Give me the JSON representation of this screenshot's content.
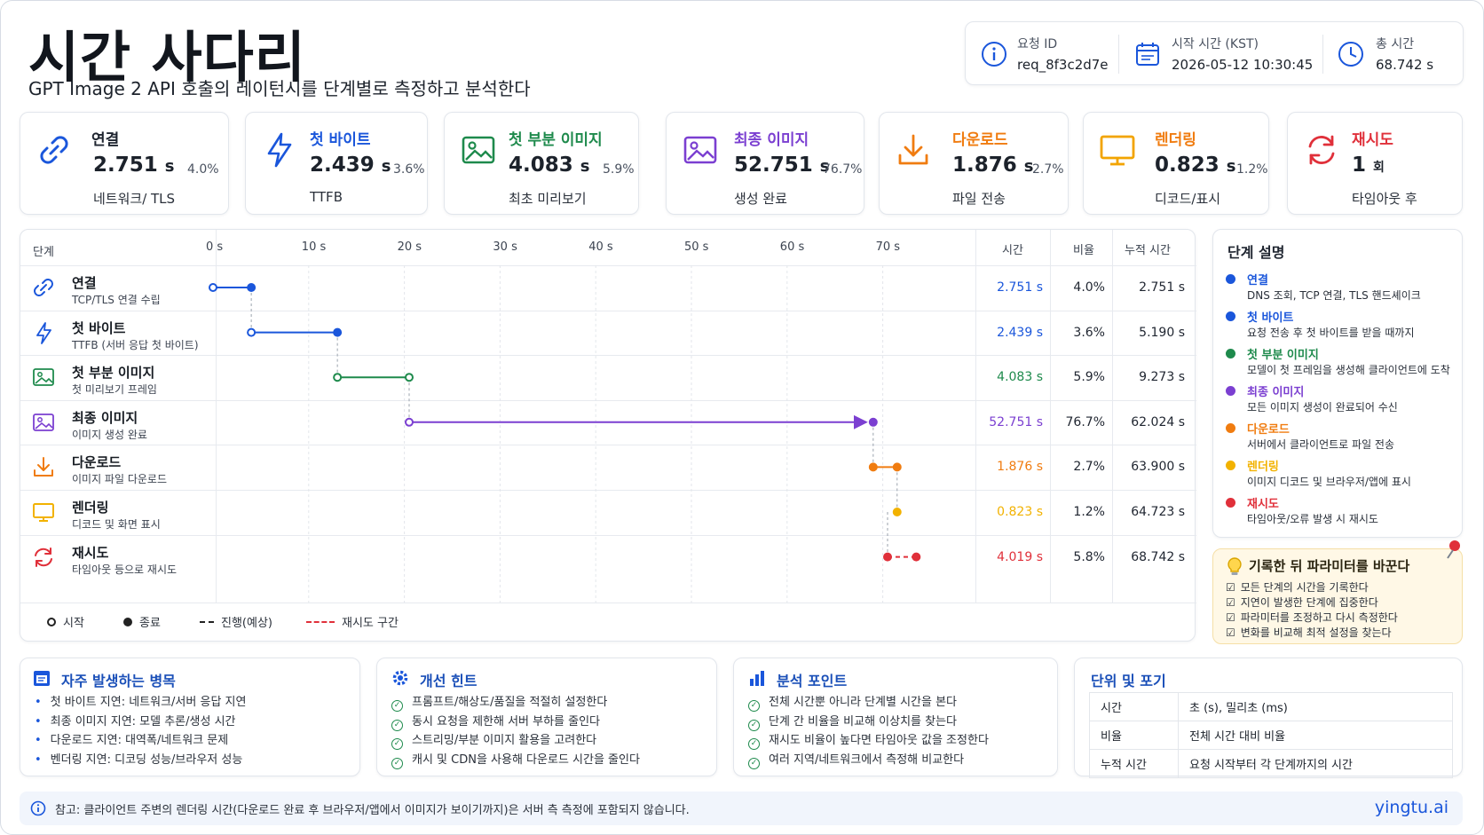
{
  "header": {
    "title": "시간 사다리",
    "subtitle": "GPT Image 2 API 호출의 레이턴시를 단계별로 측정하고 분석한다"
  },
  "info": {
    "request_id_label": "요청 ID",
    "request_id": "req_8f3c2d7e",
    "start_time_label": "시작 시간 (KST)",
    "start_time": "2026-05-12 10:30:45",
    "total_label": "총 시간",
    "total": "68.742 s"
  },
  "metrics": [
    {
      "title": "연결",
      "value": "2.751",
      "unit": "s",
      "pct": "4.0%",
      "sub": "네트워크/ TLS",
      "color": "#1f2530",
      "icon": "link-icon"
    },
    {
      "title": "첫 바이트",
      "value": "2.439",
      "unit": "s",
      "pct": "3.6%",
      "sub": "TTFB",
      "color": "#1a56db",
      "icon": "lightning-icon"
    },
    {
      "title": "첫 부분 이미지",
      "value": "4.083",
      "unit": "s",
      "pct": "5.9%",
      "sub": "최초 미리보기",
      "color": "#1e8a4c",
      "icon": "image-icon"
    },
    {
      "title": "최종 이미지",
      "value": "52.751",
      "unit": "s",
      "pct": "76.7%",
      "sub": "생성 완료",
      "color": "#7b3fd1",
      "icon": "image-icon"
    },
    {
      "title": "다운로드",
      "value": "1.876",
      "unit": "s",
      "pct": "2.7%",
      "sub": "파일 전송",
      "color": "#f07c10",
      "icon": "download-icon"
    },
    {
      "title": "렌더링",
      "value": "0.823",
      "unit": "s",
      "pct": "1.2%",
      "sub": "디코드/표시",
      "color": "#f07c10",
      "icon": "monitor-icon"
    },
    {
      "title": "재시도",
      "value": "1",
      "unit": "회",
      "pct": "",
      "sub": "타임아웃 후",
      "color": "#e0303a",
      "icon": "retry-icon"
    }
  ],
  "timeline": {
    "headers": {
      "stage": "단계",
      "time": "시간",
      "ratio": "비율",
      "cumulative": "누적 시간"
    },
    "ticks": [
      "0 s",
      "10 s",
      "20 s",
      "30 s",
      "40 s",
      "50 s",
      "60 s",
      "70 s"
    ],
    "rows": [
      {
        "name": "연결",
        "desc": "TCP/TLS 연결 수립",
        "time": "2.751 s",
        "ratio": "4.0%",
        "cum": "2.751 s",
        "color": "#1a56db",
        "icon": "link-icon"
      },
      {
        "name": "첫 바이트",
        "desc": "TTFB (서버 응답 첫 바이트)",
        "time": "2.439 s",
        "ratio": "3.6%",
        "cum": "5.190 s",
        "color": "#1a56db",
        "icon": "lightning-icon"
      },
      {
        "name": "첫 부분 이미지",
        "desc": "첫 미리보기 프레임",
        "time": "4.083 s",
        "ratio": "5.9%",
        "cum": "9.273 s",
        "color": "#1e8a4c",
        "icon": "image-icon"
      },
      {
        "name": "최종 이미지",
        "desc": "이미지 생성 완료",
        "time": "52.751 s",
        "ratio": "76.7%",
        "cum": "62.024 s",
        "color": "#7b3fd1",
        "icon": "image-icon"
      },
      {
        "name": "다운로드",
        "desc": "이미지 파일 다운로드",
        "time": "1.876 s",
        "ratio": "2.7%",
        "cum": "63.900 s",
        "color": "#f07c10",
        "icon": "download-icon"
      },
      {
        "name": "렌더링",
        "desc": "디코드 및 화면 표시",
        "time": "0.823 s",
        "ratio": "1.2%",
        "cum": "64.723 s",
        "color": "#f2b200",
        "icon": "monitor-icon"
      },
      {
        "name": "재시도",
        "desc": "타임아웃 등으로 재시도",
        "time": "4.019 s",
        "ratio": "5.8%",
        "cum": "68.742 s",
        "color": "#e0303a",
        "icon": "retry-icon"
      }
    ],
    "segments": [
      {
        "start": 0,
        "end": 4.0,
        "color": "#1a56db",
        "dashed": false,
        "start_dot": "open",
        "end_dot": "filled",
        "arrow": false
      },
      {
        "start": 4.0,
        "end": 13.0,
        "color": "#1a56db",
        "dashed": false,
        "start_dot": "open",
        "end_dot": "filled",
        "arrow": false
      },
      {
        "start": 13.0,
        "end": 20.5,
        "color": "#1e8a4c",
        "dashed": false,
        "start_dot": "open",
        "end_dot": "open",
        "arrow": false
      },
      {
        "start": 20.5,
        "end": 69.0,
        "color": "#7b3fd1",
        "dashed": false,
        "start_dot": "open",
        "end_dot": "filled",
        "arrow": true
      },
      {
        "start": 69.0,
        "end": 71.5,
        "color": "#f07c10",
        "dashed": false,
        "start_dot": "filled",
        "end_dot": "filled",
        "arrow": false
      },
      {
        "start": 71.5,
        "end": 71.5,
        "color": "#f2b200",
        "dashed": false,
        "start_dot": "filled",
        "end_dot": "filled",
        "arrow": false
      },
      {
        "start": 70.5,
        "end": 73.5,
        "color": "#e0303a",
        "dashed": true,
        "start_dot": "filled",
        "end_dot": "filled",
        "arrow": false
      }
    ],
    "legend": {
      "start": "시작",
      "end": "종료",
      "progress": "진행(예상)",
      "retry": "재시도 구간"
    }
  },
  "descriptions": {
    "title": "단계 설명",
    "items": [
      {
        "name": "연결",
        "text": "DNS 조회, TCP 연결, TLS 핸드셰이크",
        "color": "#1a56db"
      },
      {
        "name": "첫 바이트",
        "text": "요청 전송 후 첫 바이트를 받을 때까지",
        "color": "#1a56db"
      },
      {
        "name": "첫 부분 이미지",
        "text": "모델이 첫 프레임을 생성해 클라이언트에 도착",
        "color": "#1e8a4c"
      },
      {
        "name": "최종 이미지",
        "text": "모든 이미지 생성이 완료되어 수신",
        "color": "#7b3fd1"
      },
      {
        "name": "다운로드",
        "text": "서버에서 클라이언트로 파일 전송",
        "color": "#f07c10"
      },
      {
        "name": "렌더링",
        "text": "이미지 디코드 및 브라우저/앱에 표시",
        "color": "#f2b200"
      },
      {
        "name": "재시도",
        "text": "타임아웃/오류 발생 시 재시도",
        "color": "#e0303a"
      }
    ]
  },
  "note": {
    "title": "기록한 뒤 파라미터를 바꾼다",
    "items": [
      "모든 단계의 시간을 기록한다",
      "지연이 발생한 단계에 집중한다",
      "파라미터를 조정하고 다시 측정한다",
      "변화를 비교해 최적 설정을 찾는다"
    ]
  },
  "bottom": {
    "bottlenecks": {
      "title": "자주 발생하는 병목",
      "items": [
        "첫 바이트 지연: 네트워크/서버 응답 지연",
        "최종 이미지 지연: 모델 추론/생성 시간",
        "다운로드 지연: 대역폭/네트워크 문제",
        "벤더링 지연: 디코딩 성능/브라우저 성능"
      ]
    },
    "hints": {
      "title": "개선 힌트",
      "items": [
        "프롬프트/해상도/품질을 적절히 설정한다",
        "동시 요청을 제한해 서버 부하를 줄인다",
        "스트리밍/부분 이미지 활용을 고려한다",
        "캐시 및 CDN을 사용해 다운로드 시간을 줄인다"
      ]
    },
    "analysis": {
      "title": "분석 포인트",
      "items": [
        "전체 시간뿐 아니라 단계별 시간을 본다",
        "단계 간 비율을 비교해 이상치를 찾는다",
        "재시도 비율이 높다면 타임아웃 값을 조정한다",
        "여러 지역/네트워크에서 측정해 비교한다"
      ]
    },
    "units": {
      "title": "단위 및 포기",
      "rows": [
        {
          "k": "시간",
          "v": "초 (s), 밀리초 (ms)"
        },
        {
          "k": "비율",
          "v": "전체 시간 대비 비율"
        },
        {
          "k": "누적 시간",
          "v": "요청 시작부터 각 단계까지의 시간"
        }
      ]
    }
  },
  "footer": {
    "note": "참고: 클라이언트 주변의 렌더링 시간(다운로드 완료 후 브라우저/앱에서 이미지가 보이기까지)은 서버 측 측정에 포함되지 않습니다.",
    "brand": "yingtu.ai"
  }
}
